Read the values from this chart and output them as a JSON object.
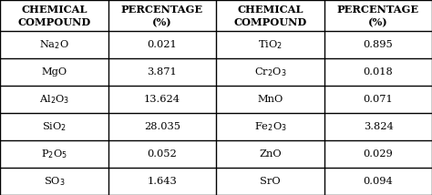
{
  "col1_header1": "CHEMICAL",
  "col1_header2": "COMPOUND",
  "col2_header1": "PERCENTAGE",
  "col2_header2": "(%)",
  "left_compounds": [
    "Na$_2$O",
    "MgO",
    "Al$_2$O$_3$",
    "SiO$_2$",
    "P$_2$O$_5$",
    "SO$_3$"
  ],
  "left_values": [
    "0.021",
    "3.871",
    "13.624",
    "28.035",
    "0.052",
    "1.643"
  ],
  "right_compounds": [
    "TiO$_2$",
    "Cr$_2$O$_3$",
    "MnO",
    "Fe$_2$O$_3$",
    "ZnO",
    "SrO"
  ],
  "right_values": [
    "0.895",
    "0.018",
    "0.071",
    "3.824",
    "0.029",
    "0.094"
  ],
  "bg_color": "#ffffff",
  "line_color": "#000000",
  "text_color": "#000000",
  "header_fontsize": 8.2,
  "cell_fontsize": 8.2,
  "fig_width": 4.74,
  "fig_height": 2.14
}
